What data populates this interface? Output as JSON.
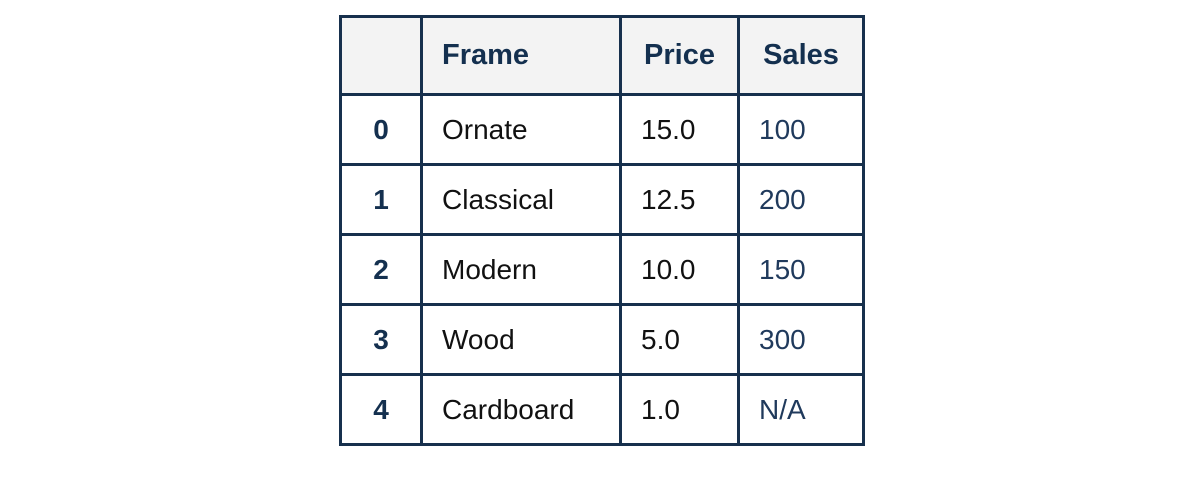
{
  "chart_data": {
    "type": "table",
    "columns": [
      "",
      "Frame",
      "Price",
      "Sales"
    ],
    "rows": [
      {
        "index": "0",
        "frame": "Ornate",
        "price": "15.0",
        "sales": "100"
      },
      {
        "index": "1",
        "frame": "Classical",
        "price": "12.5",
        "sales": "200"
      },
      {
        "index": "2",
        "frame": "Modern",
        "price": "10.0",
        "sales": "150"
      },
      {
        "index": "3",
        "frame": "Wood",
        "price": "5.0",
        "sales": "300"
      },
      {
        "index": "4",
        "frame": "Cardboard",
        "price": "1.0",
        "sales": "N/A"
      }
    ]
  },
  "colors": {
    "border": "#17304d",
    "header_background": "#f3f3f3",
    "header_text": "#14304f"
  }
}
